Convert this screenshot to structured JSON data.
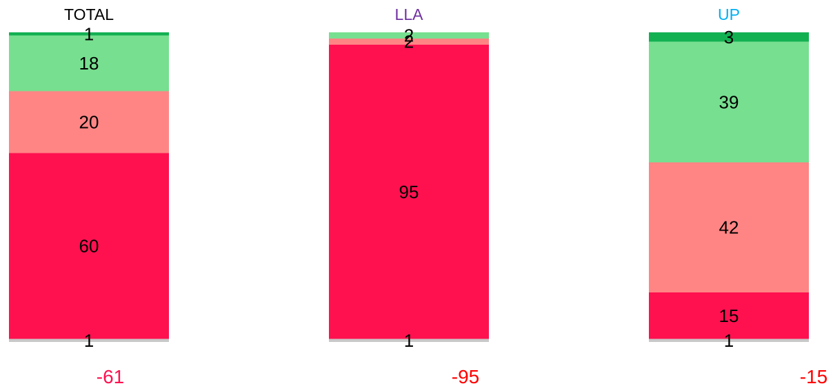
{
  "chart_data": {
    "type": "bar",
    "stacked": true,
    "categories": [
      "TOTAL",
      "LLA",
      "UP"
    ],
    "category_colors": [
      "#000000",
      "#7030a0",
      "#00b0f0"
    ],
    "series": [
      {
        "color": "#c8c8c8",
        "values": [
          1,
          1,
          1
        ]
      },
      {
        "color": "#ff1150",
        "values": [
          60,
          95,
          15
        ]
      },
      {
        "color": "#ff8585",
        "values": [
          20,
          2,
          42
        ]
      },
      {
        "color": "#77df90",
        "values": [
          18,
          2,
          39
        ]
      },
      {
        "color": "#13b052",
        "values": [
          1,
          0,
          3
        ]
      }
    ],
    "net_labels": [
      "-61",
      "-95",
      "-15"
    ],
    "net_label_color": "#ff0000",
    "total_label_color": "#ff1150",
    "ylim": [
      0,
      100
    ],
    "grid": false,
    "legend": "none"
  }
}
